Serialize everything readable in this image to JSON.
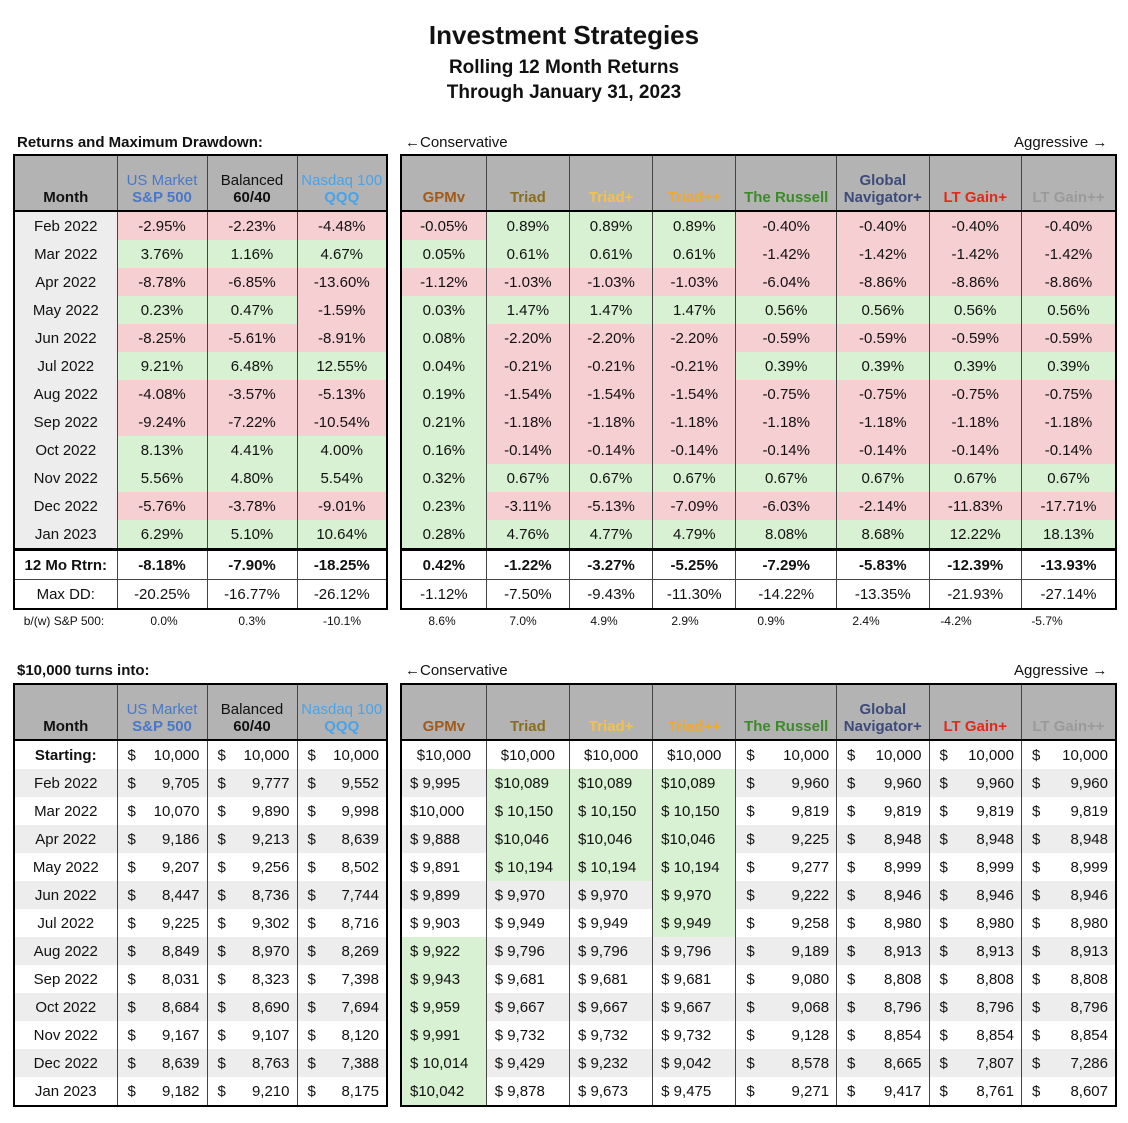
{
  "title": "Investment Strategies",
  "subtitle1": "Rolling 12 Month Returns",
  "subtitle2": "Through January 31, 2023",
  "section1_label": "Returns and Maximum Drawdown:",
  "section2_label": "$10,000 turns into:",
  "conservative": "←Conservative",
  "aggressive": "Aggressive →",
  "colors": {
    "sp500": "#4a78c8",
    "balanced": "#111111",
    "qqq": "#4aa3e8",
    "gpmv": "#a05a1a",
    "triad": "#8a6e20",
    "triadp": "#f2c14e",
    "triadpp": "#f0a830",
    "russell": "#3c8a2a",
    "global": "#3d4a7a",
    "ltgain": "#e02a1a",
    "ltgainpp": "#9a9a9a",
    "pos": "#d7f1d2",
    "neg": "#f6cfd3"
  },
  "left_headers": {
    "month": "Month",
    "sp_top": "US Market",
    "sp_bot": "S&P 500",
    "bal_top": "Balanced",
    "bal_bot": "60/40",
    "qqq_top": "Nasdaq 100",
    "qqq_bot": "QQQ"
  },
  "right_headers": {
    "gpmv": "GPMv",
    "triad": "Triad",
    "triadp": "Triad+",
    "triadpp": "Triad++",
    "russell": "The Russell",
    "global_top": "Global",
    "global_bot": "Navigator+",
    "ltgain": "LT Gain+",
    "ltgainpp": "LT Gain++"
  },
  "months": [
    "Feb 2022",
    "Mar 2022",
    "Apr 2022",
    "May 2022",
    "Jun 2022",
    "Jul 2022",
    "Aug 2022",
    "Sep 2022",
    "Oct 2022",
    "Nov 2022",
    "Dec 2022",
    "Jan 2023"
  ],
  "returns_left": [
    [
      "-2.95%",
      "-2.23%",
      "-4.48%"
    ],
    [
      "3.76%",
      "1.16%",
      "4.67%"
    ],
    [
      "-8.78%",
      "-6.85%",
      "-13.60%"
    ],
    [
      "0.23%",
      "0.47%",
      "-1.59%"
    ],
    [
      "-8.25%",
      "-5.61%",
      "-8.91%"
    ],
    [
      "9.21%",
      "6.48%",
      "12.55%"
    ],
    [
      "-4.08%",
      "-3.57%",
      "-5.13%"
    ],
    [
      "-9.24%",
      "-7.22%",
      "-10.54%"
    ],
    [
      "8.13%",
      "4.41%",
      "4.00%"
    ],
    [
      "5.56%",
      "4.80%",
      "5.54%"
    ],
    [
      "-5.76%",
      "-3.78%",
      "-9.01%"
    ],
    [
      "6.29%",
      "5.10%",
      "10.64%"
    ]
  ],
  "returns_right": [
    [
      "-0.05%",
      "0.89%",
      "0.89%",
      "0.89%",
      "-0.40%",
      "-0.40%",
      "-0.40%",
      "-0.40%"
    ],
    [
      "0.05%",
      "0.61%",
      "0.61%",
      "0.61%",
      "-1.42%",
      "-1.42%",
      "-1.42%",
      "-1.42%"
    ],
    [
      "-1.12%",
      "-1.03%",
      "-1.03%",
      "-1.03%",
      "-6.04%",
      "-8.86%",
      "-8.86%",
      "-8.86%"
    ],
    [
      "0.03%",
      "1.47%",
      "1.47%",
      "1.47%",
      "0.56%",
      "0.56%",
      "0.56%",
      "0.56%"
    ],
    [
      "0.08%",
      "-2.20%",
      "-2.20%",
      "-2.20%",
      "-0.59%",
      "-0.59%",
      "-0.59%",
      "-0.59%"
    ],
    [
      "0.04%",
      "-0.21%",
      "-0.21%",
      "-0.21%",
      "0.39%",
      "0.39%",
      "0.39%",
      "0.39%"
    ],
    [
      "0.19%",
      "-1.54%",
      "-1.54%",
      "-1.54%",
      "-0.75%",
      "-0.75%",
      "-0.75%",
      "-0.75%"
    ],
    [
      "0.21%",
      "-1.18%",
      "-1.18%",
      "-1.18%",
      "-1.18%",
      "-1.18%",
      "-1.18%",
      "-1.18%"
    ],
    [
      "0.16%",
      "-0.14%",
      "-0.14%",
      "-0.14%",
      "-0.14%",
      "-0.14%",
      "-0.14%",
      "-0.14%"
    ],
    [
      "0.32%",
      "0.67%",
      "0.67%",
      "0.67%",
      "0.67%",
      "0.67%",
      "0.67%",
      "0.67%"
    ],
    [
      "0.23%",
      "-3.11%",
      "-5.13%",
      "-7.09%",
      "-6.03%",
      "-2.14%",
      "-11.83%",
      "-17.71%"
    ],
    [
      "0.28%",
      "4.76%",
      "4.77%",
      "4.79%",
      "8.08%",
      "8.68%",
      "12.22%",
      "18.13%"
    ]
  ],
  "twelve_label": "12 Mo Rtrn:",
  "twelve_left": [
    "-8.18%",
    "-7.90%",
    "-18.25%"
  ],
  "twelve_right": [
    "0.42%",
    "-1.22%",
    "-3.27%",
    "-5.25%",
    "-7.29%",
    "-5.83%",
    "-12.39%",
    "-13.93%"
  ],
  "maxdd_label": "Max DD:",
  "maxdd_left": [
    "-20.25%",
    "-16.77%",
    "-26.12%"
  ],
  "maxdd_right": [
    "-1.12%",
    "-7.50%",
    "-9.43%",
    "-11.30%",
    "-14.22%",
    "-13.35%",
    "-21.93%",
    "-27.14%"
  ],
  "bw_label": "b/(w) S&P 500:",
  "bw_values": [
    "0.0%",
    "0.3%",
    "-10.1%",
    "8.6%",
    "7.0%",
    "4.9%",
    "2.9%",
    "0.9%",
    "2.4%",
    "-4.2%",
    "-5.7%"
  ],
  "starting_label": "Starting:",
  "dollar": "$",
  "start_left": [
    "10,000",
    "10,000",
    "10,000"
  ],
  "start_right": [
    "$10,000",
    "$10,000",
    "$10,000",
    "$10,000",
    "10,000",
    "10,000",
    "10,000",
    "10,000"
  ],
  "growth_left": [
    [
      "9,705",
      "9,777",
      "9,552"
    ],
    [
      "10,070",
      "9,890",
      "9,998"
    ],
    [
      "9,186",
      "9,213",
      "8,639"
    ],
    [
      "9,207",
      "9,256",
      "8,502"
    ],
    [
      "8,447",
      "8,736",
      "7,744"
    ],
    [
      "9,225",
      "9,302",
      "8,716"
    ],
    [
      "8,849",
      "8,970",
      "8,269"
    ],
    [
      "8,031",
      "8,323",
      "7,398"
    ],
    [
      "8,684",
      "8,690",
      "7,694"
    ],
    [
      "9,167",
      "9,107",
      "8,120"
    ],
    [
      "8,639",
      "8,763",
      "7,388"
    ],
    [
      "9,182",
      "9,210",
      "8,175"
    ]
  ],
  "growth_right": [
    [
      "$ 9,995",
      "$10,089",
      "$10,089",
      "$10,089",
      "9,960",
      "9,960",
      "9,960",
      "9,960"
    ],
    [
      "$10,000",
      "$ 10,150",
      "$ 10,150",
      "$ 10,150",
      "9,819",
      "9,819",
      "9,819",
      "9,819"
    ],
    [
      "$ 9,888",
      "$10,046",
      "$10,046",
      "$10,046",
      "9,225",
      "8,948",
      "8,948",
      "8,948"
    ],
    [
      "$ 9,891",
      "$ 10,194",
      "$ 10,194",
      "$ 10,194",
      "9,277",
      "8,999",
      "8,999",
      "8,999"
    ],
    [
      "$ 9,899",
      "$ 9,970",
      "$ 9,970",
      "$ 9,970",
      "9,222",
      "8,946",
      "8,946",
      "8,946"
    ],
    [
      "$ 9,903",
      "$ 9,949",
      "$ 9,949",
      "$ 9,949",
      "9,258",
      "8,980",
      "8,980",
      "8,980"
    ],
    [
      "$ 9,922",
      "$ 9,796",
      "$ 9,796",
      "$ 9,796",
      "9,189",
      "8,913",
      "8,913",
      "8,913"
    ],
    [
      "$ 9,943",
      "$ 9,681",
      "$ 9,681",
      "$ 9,681",
      "9,080",
      "8,808",
      "8,808",
      "8,808"
    ],
    [
      "$ 9,959",
      "$ 9,667",
      "$ 9,667",
      "$ 9,667",
      "9,068",
      "8,796",
      "8,796",
      "8,796"
    ],
    [
      "$ 9,991",
      "$ 9,732",
      "$ 9,732",
      "$ 9,732",
      "9,128",
      "8,854",
      "8,854",
      "8,854"
    ],
    [
      "$ 10,014",
      "$ 9,429",
      "$ 9,232",
      "$ 9,042",
      "8,578",
      "8,665",
      "7,807",
      "7,286"
    ],
    [
      "$10,042",
      "$ 9,878",
      "$ 9,673",
      "$ 9,475",
      "9,271",
      "9,417",
      "8,761",
      "8,607"
    ]
  ],
  "growth_highlight": [
    [
      false,
      true,
      true,
      true
    ],
    [
      false,
      true,
      true,
      true
    ],
    [
      false,
      true,
      true,
      true
    ],
    [
      false,
      true,
      true,
      true
    ],
    [
      false,
      false,
      false,
      true
    ],
    [
      false,
      false,
      false,
      true
    ],
    [
      true,
      false,
      false,
      false
    ],
    [
      true,
      false,
      false,
      false
    ],
    [
      true,
      false,
      false,
      false
    ],
    [
      true,
      false,
      false,
      false
    ],
    [
      true,
      false,
      false,
      false
    ],
    [
      true,
      false,
      false,
      false
    ]
  ]
}
